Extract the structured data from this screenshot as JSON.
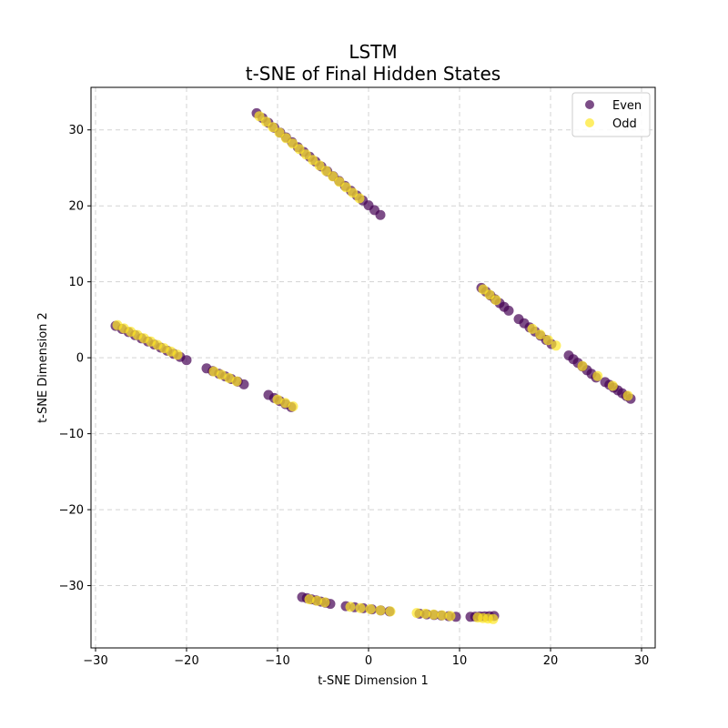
{
  "chart_data": {
    "type": "scatter",
    "title_line1": "LSTM",
    "title_line2": "t-SNE of Final Hidden States",
    "xlabel": "t-SNE Dimension 1",
    "ylabel": "t-SNE Dimension 2",
    "xlim": [
      -30.5,
      31.5
    ],
    "ylim": [
      -38.2,
      35.6
    ],
    "xticks": [
      -30,
      -20,
      -10,
      0,
      10,
      20,
      30
    ],
    "yticks": [
      -30,
      -20,
      -10,
      0,
      10,
      20,
      30
    ],
    "grid": true,
    "legend_position": "top-right",
    "series": [
      {
        "name": "Even",
        "color": "#440154",
        "segments": [
          {
            "from": [
              -12.3,
              32.2
            ],
            "to": [
              1.3,
              18.8
            ],
            "n": 22
          },
          {
            "from": [
              -27.8,
              4.2
            ],
            "to": [
              -20.0,
              -0.3
            ],
            "n": 12
          },
          {
            "from": [
              -17.8,
              -1.4
            ],
            "to": [
              -13.7,
              -3.5
            ],
            "n": 7
          },
          {
            "from": [
              -11.0,
              -4.9
            ],
            "to": [
              -8.5,
              -6.5
            ],
            "n": 5
          },
          {
            "from": [
              12.4,
              9.2
            ],
            "to": [
              15.4,
              6.2
            ],
            "n": 7
          },
          {
            "from": [
              16.5,
              5.1
            ],
            "to": [
              20.1,
              1.8
            ],
            "n": 7
          },
          {
            "from": [
              22.0,
              0.3
            ],
            "to": [
              25.0,
              -2.6
            ],
            "n": 7
          },
          {
            "from": [
              26.0,
              -3.2
            ],
            "to": [
              28.8,
              -5.4
            ],
            "n": 7
          },
          {
            "from": [
              -7.3,
              -31.5
            ],
            "to": [
              -4.2,
              -32.4
            ],
            "n": 7
          },
          {
            "from": [
              -2.5,
              -32.7
            ],
            "to": [
              2.3,
              -33.4
            ],
            "n": 6
          },
          {
            "from": [
              5.6,
              -33.7
            ],
            "to": [
              9.6,
              -34.1
            ],
            "n": 6
          },
          {
            "from": [
              11.2,
              -34.1
            ],
            "to": [
              13.8,
              -34.0
            ],
            "n": 6
          }
        ]
      },
      {
        "name": "Odd",
        "color": "#fde725",
        "segments": [
          {
            "from": [
              -12.0,
              31.8
            ],
            "to": [
              -1.0,
              21.0
            ],
            "n": 16
          },
          {
            "from": [
              -27.6,
              4.3
            ],
            "to": [
              -21.0,
              0.4
            ],
            "n": 10
          },
          {
            "from": [
              -17.0,
              -1.8
            ],
            "to": [
              -14.5,
              -3.1
            ],
            "n": 4
          },
          {
            "from": [
              -10.0,
              -5.5
            ],
            "to": [
              -8.3,
              -6.4
            ],
            "n": 3
          },
          {
            "from": [
              12.6,
              9.0
            ],
            "to": [
              14.0,
              7.6
            ],
            "n": 3
          },
          {
            "from": [
              18.0,
              3.8
            ],
            "to": [
              20.6,
              1.6
            ],
            "n": 4
          },
          {
            "from": [
              23.5,
              -1.1
            ],
            "to": [
              28.5,
              -5.0
            ],
            "n": 4
          },
          {
            "from": [
              -6.5,
              -31.8
            ],
            "to": [
              -4.8,
              -32.2
            ],
            "n": 3
          },
          {
            "from": [
              -2.0,
              -32.8
            ],
            "to": [
              2.4,
              -33.4
            ],
            "n": 5
          },
          {
            "from": [
              5.3,
              -33.6
            ],
            "to": [
              9.0,
              -34.0
            ],
            "n": 5
          },
          {
            "from": [
              12.0,
              -34.2
            ],
            "to": [
              13.7,
              -34.4
            ],
            "n": 4
          }
        ]
      }
    ]
  }
}
